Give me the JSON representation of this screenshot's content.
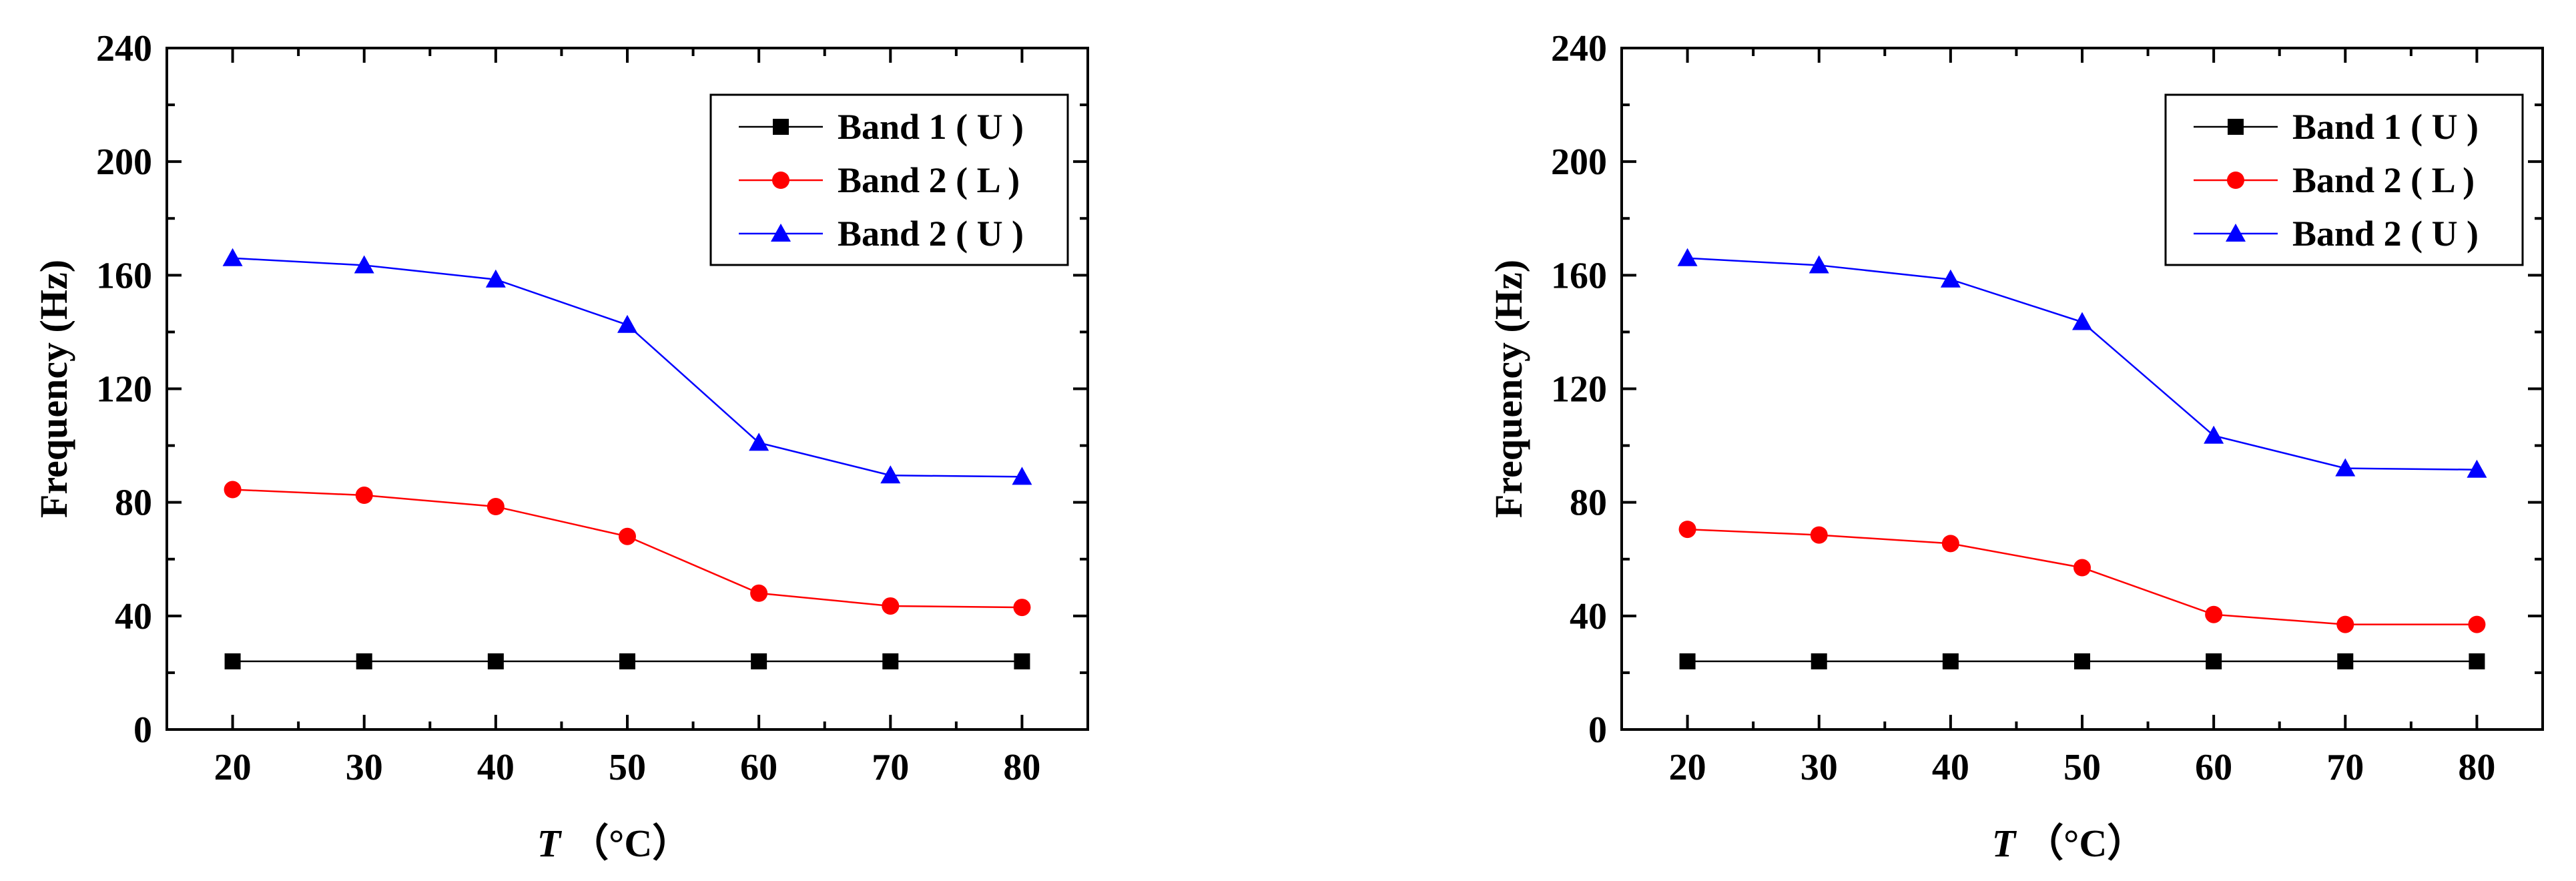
{
  "chart_data": [
    {
      "type": "line",
      "title": "",
      "xlabel_italic": "T",
      "xlabel_unit": "（°C）",
      "ylabel": "Frequency (Hz)",
      "xlim": [
        15,
        85
      ],
      "ylim": [
        0,
        240
      ],
      "x": [
        20,
        30,
        40,
        50,
        60,
        70,
        80
      ],
      "xticks": [
        "20",
        "30",
        "40",
        "50",
        "60",
        "70",
        "80"
      ],
      "yticks": [
        "0",
        "40",
        "80",
        "120",
        "160",
        "200",
        "240"
      ],
      "grid": false,
      "legend_position": "top-right",
      "series": [
        {
          "name": "Band 1 ( U )",
          "color": "#000000",
          "marker": "square",
          "values": [
            24,
            24,
            24,
            24,
            24,
            24,
            24
          ]
        },
        {
          "name": "Band 2 ( L )",
          "color": "#ff0000",
          "marker": "circle",
          "values": [
            84.5,
            82.5,
            78.5,
            68,
            48,
            43.5,
            43
          ]
        },
        {
          "name": "Band 2 ( U )",
          "color": "#0000ff",
          "marker": "triangle",
          "values": [
            166,
            163.5,
            158.5,
            142.5,
            101,
            89.5,
            89
          ]
        }
      ]
    },
    {
      "type": "line",
      "title": "",
      "xlabel_italic": "T",
      "xlabel_unit": "（°C）",
      "ylabel": "Frequency (Hz)",
      "xlim": [
        15,
        85
      ],
      "ylim": [
        0,
        240
      ],
      "x": [
        20,
        30,
        40,
        50,
        60,
        70,
        80
      ],
      "xticks": [
        "20",
        "30",
        "40",
        "50",
        "60",
        "70",
        "80"
      ],
      "yticks": [
        "0",
        "40",
        "80",
        "120",
        "160",
        "200",
        "240"
      ],
      "grid": false,
      "legend_position": "top-right",
      "series": [
        {
          "name": "Band 1 ( U )",
          "color": "#000000",
          "marker": "square",
          "values": [
            24,
            24,
            24,
            24,
            24,
            24,
            24
          ]
        },
        {
          "name": "Band 2 ( L )",
          "color": "#ff0000",
          "marker": "circle",
          "values": [
            70.5,
            68.5,
            65.5,
            57,
            40.5,
            37,
            37
          ]
        },
        {
          "name": "Band 2 ( U )",
          "color": "#0000ff",
          "marker": "triangle",
          "values": [
            166,
            163.5,
            158.5,
            143.5,
            103.5,
            92,
            91.5
          ]
        }
      ]
    }
  ]
}
